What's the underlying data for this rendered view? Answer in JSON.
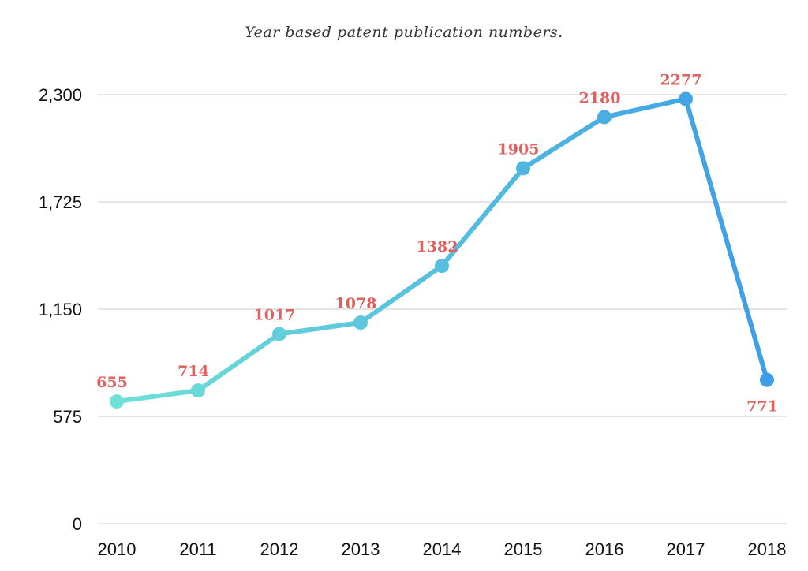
{
  "chart_data": {
    "type": "line",
    "title": "Year based patent publication numbers.",
    "xlabel": "",
    "ylabel": "",
    "categories": [
      "2010",
      "2011",
      "2012",
      "2013",
      "2014",
      "2015",
      "2016",
      "2017",
      "2018"
    ],
    "series": [
      {
        "values": [
          655,
          714,
          1017,
          1078,
          1382,
          1905,
          2180,
          2277,
          771
        ]
      }
    ],
    "ylim": [
      0,
      2300
    ],
    "yticks": [
      0,
      575,
      1150,
      1725,
      2300
    ],
    "ytick_labels": [
      "0",
      "575",
      "1,150",
      "1,725",
      "2,300"
    ],
    "grid": true,
    "legend": "none",
    "data_labels": true
  },
  "colors": {
    "line_start": "#6fe0d6",
    "line_end": "#3d9de6",
    "data_label": "#e06060",
    "grid": "#cccccc",
    "axis_text": "#111111"
  }
}
